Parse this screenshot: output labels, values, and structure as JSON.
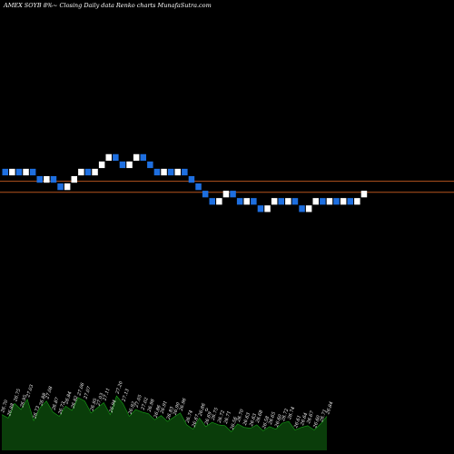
{
  "chart_data": {
    "type": "renko",
    "title": "AMEX  SOYB 8%~  Closing Daily data  Renko  charts MunafaSutra.com",
    "colors": {
      "background": "#000000",
      "up_brick": "#ffffff",
      "down_brick": "#1e6fe0",
      "reference_line": "#b5541f",
      "volume_fill": "#0a3d0a",
      "volume_edge": "#16a016",
      "text": "#ffffff"
    },
    "brick_size": 0.2,
    "ylim": [
      20.0,
      32.4
    ],
    "reference_lines": [
      27.45,
      27.15
    ],
    "bricks": [
      {
        "dir": "down",
        "low": 27.6
      },
      {
        "dir": "up",
        "low": 27.6
      },
      {
        "dir": "down",
        "low": 27.6
      },
      {
        "dir": "up",
        "low": 27.6
      },
      {
        "dir": "down",
        "low": 27.6
      },
      {
        "dir": "down",
        "low": 27.4
      },
      {
        "dir": "up",
        "low": 27.4
      },
      {
        "dir": "down",
        "low": 27.4
      },
      {
        "dir": "down",
        "low": 27.2
      },
      {
        "dir": "up",
        "low": 27.2
      },
      {
        "dir": "up",
        "low": 27.4
      },
      {
        "dir": "up",
        "low": 27.6
      },
      {
        "dir": "down",
        "low": 27.6
      },
      {
        "dir": "up",
        "low": 27.6
      },
      {
        "dir": "up",
        "low": 27.8
      },
      {
        "dir": "up",
        "low": 28.0
      },
      {
        "dir": "down",
        "low": 28.0
      },
      {
        "dir": "down",
        "low": 27.8
      },
      {
        "dir": "up",
        "low": 27.8
      },
      {
        "dir": "up",
        "low": 28.0
      },
      {
        "dir": "down",
        "low": 28.0
      },
      {
        "dir": "down",
        "low": 27.8
      },
      {
        "dir": "down",
        "low": 27.6
      },
      {
        "dir": "up",
        "low": 27.6
      },
      {
        "dir": "down",
        "low": 27.6
      },
      {
        "dir": "up",
        "low": 27.6
      },
      {
        "dir": "down",
        "low": 27.6
      },
      {
        "dir": "down",
        "low": 27.4
      },
      {
        "dir": "down",
        "low": 27.2
      },
      {
        "dir": "down",
        "low": 27.0
      },
      {
        "dir": "down",
        "low": 26.8
      },
      {
        "dir": "up",
        "low": 26.8
      },
      {
        "dir": "up",
        "low": 27.0
      },
      {
        "dir": "down",
        "low": 27.0
      },
      {
        "dir": "down",
        "low": 26.8
      },
      {
        "dir": "up",
        "low": 26.8
      },
      {
        "dir": "down",
        "low": 26.8
      },
      {
        "dir": "down",
        "low": 26.6
      },
      {
        "dir": "up",
        "low": 26.6
      },
      {
        "dir": "up",
        "low": 26.8
      },
      {
        "dir": "down",
        "low": 26.8
      },
      {
        "dir": "up",
        "low": 26.8
      },
      {
        "dir": "down",
        "low": 26.8
      },
      {
        "dir": "down",
        "low": 26.6
      },
      {
        "dir": "up",
        "low": 26.6
      },
      {
        "dir": "up",
        "low": 26.8
      },
      {
        "dir": "down",
        "low": 26.8
      },
      {
        "dir": "up",
        "low": 26.8
      },
      {
        "dir": "down",
        "low": 26.8
      },
      {
        "dir": "up",
        "low": 26.8
      },
      {
        "dir": "down",
        "low": 26.8
      },
      {
        "dir": "up",
        "low": 26.8
      },
      {
        "dir": "up",
        "low": 27.0
      }
    ],
    "volume": {
      "labels": [
        "26.70",
        "26.88",
        "26.75",
        "26.95",
        "27.03",
        "26.73",
        "26.88",
        "27.08",
        "26.87",
        "26.73",
        "26.84",
        "26.82",
        "27.06",
        "27.07",
        "26.95",
        "27.03",
        "27.11",
        "26.94",
        "27.20",
        "27.13",
        "26.92",
        "27.05",
        "27.02",
        "26.98",
        "26.86",
        "26.91",
        "26.83",
        "26.90",
        "26.96",
        "26.74",
        "26.67",
        "26.86",
        "26.69",
        "26.75",
        "26.72",
        "26.71",
        "26.56",
        "26.70",
        "26.63",
        "26.63",
        "26.68",
        "26.58",
        "26.65",
        "26.60",
        "26.72",
        "26.74",
        "26.61",
        "26.64",
        "26.67",
        "26.60",
        "26.71",
        "26.84"
      ],
      "values": [
        42,
        38,
        55,
        48,
        60,
        35,
        50,
        58,
        45,
        40,
        52,
        47,
        62,
        58,
        44,
        50,
        56,
        42,
        64,
        55,
        40,
        48,
        45,
        43,
        36,
        41,
        34,
        39,
        44,
        30,
        25,
        38,
        28,
        33,
        30,
        29,
        22,
        31,
        27,
        26,
        30,
        23,
        28,
        25,
        32,
        34,
        24,
        27,
        29,
        24,
        31,
        40
      ],
      "marker_label": "0"
    }
  }
}
